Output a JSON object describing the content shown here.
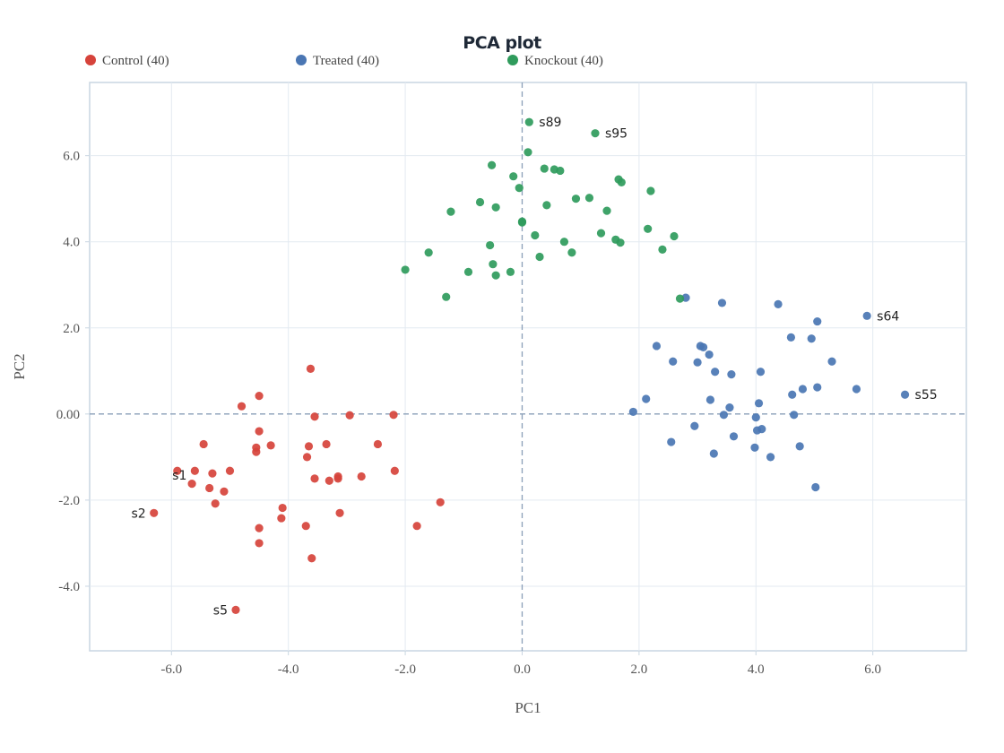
{
  "chart_data": {
    "type": "scatter",
    "title": "PCA plot",
    "xlabel": "PC1",
    "ylabel": "PC2",
    "xlim": [
      -7.4,
      7.6
    ],
    "ylim": [
      -5.5,
      7.7
    ],
    "xticks": [
      -6.0,
      -4.0,
      -2.0,
      0.0,
      2.0,
      4.0,
      6.0
    ],
    "xtick_labels": [
      "-6.0",
      "-4.0",
      "-2.0",
      "0.0",
      "2.0",
      "4.0",
      "6.0"
    ],
    "yticks": [
      -4.0,
      -2.0,
      0.0,
      2.0,
      4.0,
      6.0
    ],
    "ytick_labels": [
      "-4.0",
      "-2.0",
      "0.00",
      "2.0",
      "4.0",
      "6.0"
    ],
    "grid": true,
    "reference_lines": {
      "x": 0,
      "y": 0,
      "style": "dashed"
    },
    "legend": {
      "position": "top"
    },
    "series": [
      {
        "name": "Control (40)",
        "color": "#d6433b",
        "x": [
          -6.3,
          -5.9,
          -5.65,
          -5.6,
          -5.45,
          -5.35,
          -5.3,
          -5.25,
          -5.1,
          -5.0,
          -4.9,
          -4.8,
          -4.55,
          -4.55,
          -4.5,
          -4.5,
          -4.5,
          -4.5,
          -4.3,
          -4.1,
          -4.12,
          -3.7,
          -3.68,
          -3.65,
          -3.62,
          -3.6,
          -3.55,
          -3.55,
          -3.35,
          -3.3,
          -3.15,
          -3.15,
          -3.12,
          -2.95,
          -2.75,
          -2.47,
          -2.2,
          -2.18,
          -1.8,
          -1.4
        ],
        "y": [
          -2.3,
          -1.32,
          -1.62,
          -1.32,
          -0.7,
          -1.72,
          -1.38,
          -2.08,
          -1.8,
          -1.32,
          -4.55,
          0.18,
          -0.88,
          -0.78,
          -2.65,
          -3.0,
          -0.4,
          0.42,
          -0.73,
          -2.18,
          -2.42,
          -2.6,
          -1.0,
          -0.75,
          1.05,
          -3.35,
          -1.5,
          -0.06,
          -0.7,
          -1.55,
          -1.45,
          -1.5,
          -2.3,
          -0.03,
          -1.45,
          -0.7,
          -0.02,
          -1.32,
          -2.6,
          -2.05
        ]
      },
      {
        "name": "Treated (40)",
        "color": "#4a76b3",
        "x": [
          1.9,
          2.12,
          2.3,
          2.55,
          2.58,
          2.8,
          2.95,
          3.0,
          3.05,
          3.1,
          3.2,
          3.22,
          3.28,
          3.3,
          3.42,
          3.45,
          3.55,
          3.58,
          3.62,
          3.98,
          4.0,
          4.02,
          4.05,
          4.08,
          4.1,
          4.25,
          4.38,
          4.6,
          4.62,
          4.65,
          4.75,
          4.8,
          4.95,
          5.02,
          5.05,
          5.05,
          5.3,
          5.72,
          5.9,
          6.55
        ],
        "y": [
          0.05,
          0.35,
          1.58,
          -0.65,
          1.22,
          2.7,
          -0.28,
          1.2,
          1.58,
          1.55,
          1.38,
          0.33,
          -0.92,
          0.98,
          2.58,
          -0.02,
          0.15,
          0.92,
          -0.52,
          -0.78,
          -0.08,
          -0.38,
          0.25,
          0.98,
          -0.35,
          -1.0,
          2.55,
          1.78,
          0.45,
          -0.02,
          -0.75,
          0.58,
          1.75,
          -1.7,
          0.62,
          2.15,
          1.22,
          0.58,
          2.28,
          0.45
        ]
      },
      {
        "name": "Knockout (40)",
        "color": "#2f9b5c",
        "x": [
          -2.0,
          -1.6,
          -1.3,
          -1.22,
          -0.92,
          -0.72,
          -0.55,
          -0.52,
          -0.5,
          -0.45,
          -0.45,
          -0.2,
          -0.15,
          -0.05,
          0.0,
          0.0,
          0.1,
          0.12,
          0.22,
          0.3,
          0.38,
          0.42,
          0.55,
          0.65,
          0.72,
          0.85,
          0.92,
          1.15,
          1.25,
          1.35,
          1.45,
          1.6,
          1.65,
          1.68,
          1.7,
          2.15,
          2.2,
          2.4,
          2.6,
          2.7
        ],
        "y": [
          3.35,
          3.75,
          2.72,
          4.7,
          3.3,
          4.92,
          3.92,
          5.78,
          3.48,
          4.8,
          3.22,
          3.3,
          5.52,
          5.25,
          4.47,
          4.45,
          6.08,
          6.78,
          4.15,
          3.65,
          5.7,
          4.85,
          5.68,
          5.65,
          4.0,
          3.75,
          5.0,
          5.02,
          6.52,
          4.2,
          4.72,
          4.05,
          5.45,
          3.98,
          5.38,
          4.3,
          5.18,
          3.82,
          4.13,
          2.68
        ]
      }
    ],
    "point_labels": [
      {
        "text": "s1",
        "x": -5.6,
        "y": -1.42
      },
      {
        "text": "s2",
        "x": -6.3,
        "y": -2.3
      },
      {
        "text": "s5",
        "x": -4.9,
        "y": -4.55
      },
      {
        "text": "s89",
        "x": 0.12,
        "y": 6.78
      },
      {
        "text": "s95",
        "x": 1.25,
        "y": 6.52
      },
      {
        "text": "s64",
        "x": 5.9,
        "y": 2.28
      },
      {
        "text": "s55",
        "x": 6.55,
        "y": 0.45
      }
    ]
  }
}
